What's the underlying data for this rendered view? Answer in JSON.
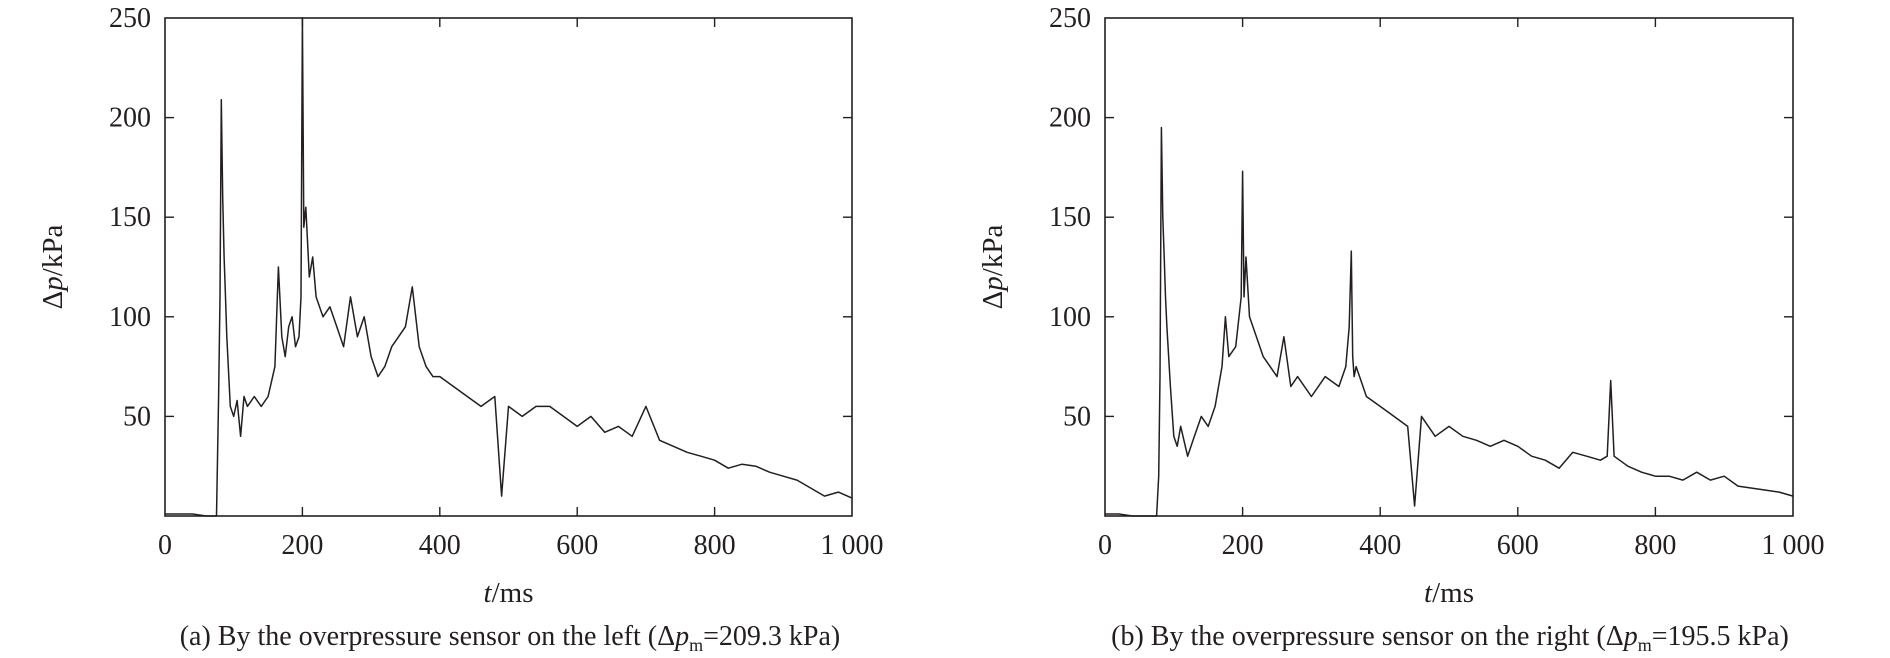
{
  "chart_data": [
    {
      "type": "line",
      "panel": "left",
      "caption": {
        "prefix": "(a) By the overpressure sensor on the left (Δ",
        "p": "p",
        "sub": "m",
        "suffix": "=209.3 kPa)"
      },
      "xlabel": {
        "italic": "t",
        "rest": "/ms"
      },
      "ylabel": {
        "pre": "Δ",
        "italic": "p",
        "rest": "/kPa"
      },
      "xlim": [
        0,
        1000
      ],
      "ylim": [
        0,
        250
      ],
      "xticks": [
        0,
        200,
        400,
        600,
        800,
        1000
      ],
      "xtick_labels": [
        "0",
        "200",
        "400",
        "600",
        "800",
        "1 000"
      ],
      "yticks": [
        50,
        100,
        150,
        200,
        250
      ],
      "ytick_labels": [
        "50",
        "100",
        "150",
        "200",
        "250"
      ],
      "grid": false,
      "color": "#231f20",
      "series": [
        {
          "x": [
            0,
            20,
            40,
            60,
            70,
            75,
            76,
            78,
            80,
            82,
            84,
            86,
            88,
            90,
            95,
            100,
            105,
            110,
            115,
            120,
            130,
            140,
            150,
            160,
            165,
            170,
            175,
            180,
            185,
            190,
            195,
            198,
            200,
            202,
            205,
            210,
            215,
            220,
            230,
            240,
            250,
            260,
            270,
            280,
            290,
            300,
            310,
            320,
            330,
            340,
            350,
            360,
            370,
            380,
            390,
            400,
            420,
            440,
            460,
            480,
            490,
            500,
            520,
            540,
            560,
            580,
            600,
            620,
            640,
            660,
            680,
            700,
            720,
            740,
            760,
            780,
            800,
            820,
            840,
            860,
            880,
            900,
            920,
            940,
            960,
            980,
            1000
          ],
          "y": [
            1,
            1,
            1,
            0,
            0,
            0,
            20,
            60,
            110,
            209,
            160,
            130,
            110,
            90,
            55,
            50,
            58,
            40,
            60,
            55,
            60,
            55,
            60,
            75,
            125,
            90,
            80,
            95,
            100,
            85,
            90,
            110,
            250,
            145,
            155,
            120,
            130,
            110,
            100,
            105,
            95,
            85,
            110,
            90,
            100,
            80,
            70,
            75,
            85,
            90,
            95,
            115,
            85,
            75,
            70,
            70,
            65,
            60,
            55,
            60,
            10,
            55,
            50,
            55,
            55,
            50,
            45,
            50,
            42,
            45,
            40,
            55,
            38,
            35,
            32,
            30,
            28,
            24,
            26,
            25,
            22,
            20,
            18,
            14,
            10,
            12,
            9
          ]
        }
      ]
    },
    {
      "type": "line",
      "panel": "right",
      "caption": {
        "prefix": "(b) By the overpressure sensor on the right (Δ",
        "p": "p",
        "sub": "m",
        "suffix": "=195.5 kPa)"
      },
      "xlabel": {
        "italic": "t",
        "rest": "/ms"
      },
      "ylabel": {
        "pre": "Δ",
        "italic": "p",
        "rest": "/kPa"
      },
      "xlim": [
        0,
        1000
      ],
      "ylim": [
        0,
        250
      ],
      "xticks": [
        0,
        200,
        400,
        600,
        800,
        1000
      ],
      "xtick_labels": [
        "0",
        "200",
        "400",
        "600",
        "800",
        "1 000"
      ],
      "yticks": [
        50,
        100,
        150,
        200,
        250
      ],
      "ytick_labels": [
        "50",
        "100",
        "150",
        "200",
        "250"
      ],
      "grid": false,
      "color": "#231f20",
      "series": [
        {
          "x": [
            0,
            20,
            40,
            60,
            70,
            75,
            78,
            80,
            82,
            84,
            86,
            88,
            90,
            95,
            100,
            105,
            110,
            120,
            130,
            140,
            150,
            160,
            170,
            175,
            180,
            190,
            198,
            200,
            202,
            205,
            210,
            220,
            230,
            240,
            250,
            260,
            270,
            280,
            300,
            320,
            340,
            350,
            355,
            358,
            360,
            362,
            365,
            370,
            380,
            400,
            420,
            440,
            450,
            460,
            480,
            500,
            520,
            540,
            560,
            580,
            600,
            620,
            640,
            660,
            680,
            700,
            720,
            730,
            735,
            740,
            760,
            780,
            800,
            820,
            840,
            860,
            880,
            900,
            920,
            940,
            960,
            980,
            1000
          ],
          "y": [
            1,
            1,
            0,
            0,
            0,
            0,
            20,
            70,
            195,
            150,
            130,
            110,
            95,
            65,
            40,
            35,
            45,
            30,
            40,
            50,
            45,
            55,
            75,
            100,
            80,
            85,
            110,
            173,
            110,
            130,
            100,
            90,
            80,
            75,
            70,
            90,
            65,
            70,
            60,
            70,
            65,
            75,
            95,
            133,
            80,
            70,
            75,
            70,
            60,
            55,
            50,
            45,
            5,
            50,
            40,
            45,
            40,
            38,
            35,
            38,
            35,
            30,
            28,
            24,
            32,
            30,
            28,
            30,
            68,
            30,
            25,
            22,
            20,
            20,
            18,
            22,
            18,
            20,
            15,
            14,
            13,
            12,
            10
          ]
        }
      ]
    }
  ]
}
